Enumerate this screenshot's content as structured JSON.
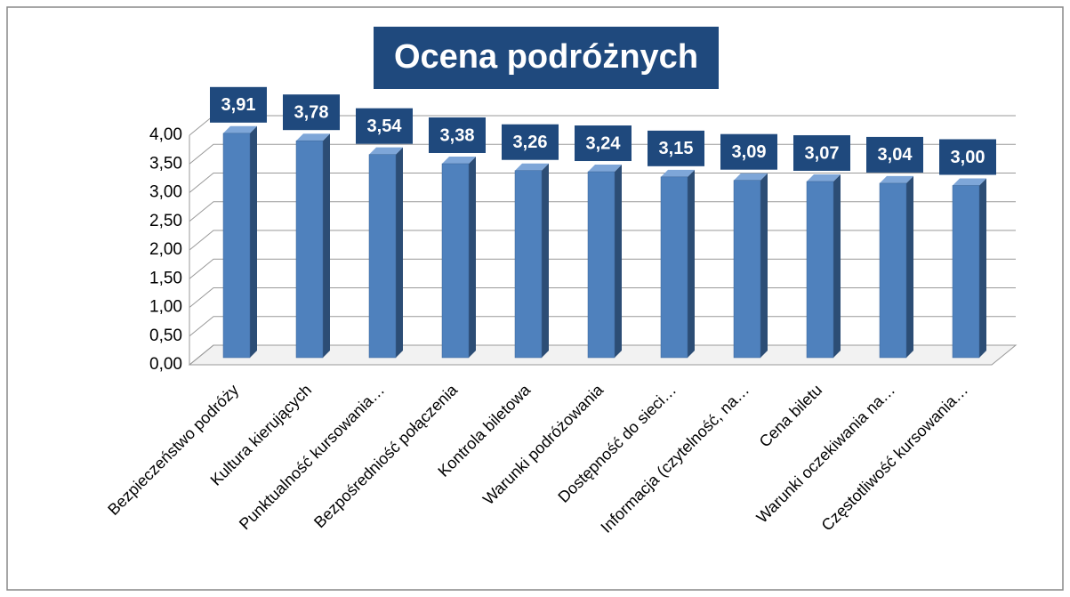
{
  "chart_data": {
    "type": "bar3d",
    "title": "Ocena podróżnych",
    "categories": [
      "Bezpieczeństwo podróży",
      "Kultura kierujących",
      "Punktualność kursowania…",
      "Bezpośredniość połączenia",
      "Kontrola biletowa",
      "Warunki podróżowania",
      "Dostępność do sieci…",
      "Informacja (czytelność, na…",
      "Cena biletu",
      "Warunki oczekiwania na…",
      "Częstotliwość kursowania…"
    ],
    "values": [
      3.91,
      3.78,
      3.54,
      3.38,
      3.26,
      3.24,
      3.15,
      3.09,
      3.07,
      3.04,
      3.0
    ],
    "value_labels": [
      "3,91",
      "3,78",
      "3,54",
      "3,38",
      "3,26",
      "3,24",
      "3,15",
      "3,09",
      "3,07",
      "3,04",
      "3,00"
    ],
    "color": "#4f81bd",
    "ylim": [
      0,
      4
    ],
    "yticks": [
      {
        "value": 0,
        "label": "0,00"
      },
      {
        "value": 0.5,
        "label": "0,50"
      },
      {
        "value": 1,
        "label": "1,00"
      },
      {
        "value": 1.5,
        "label": "1,50"
      },
      {
        "value": 2,
        "label": "2,00"
      },
      {
        "value": 2.5,
        "label": "2,50"
      },
      {
        "value": 3,
        "label": "3,00"
      },
      {
        "value": 3.5,
        "label": "3,50"
      },
      {
        "value": 4,
        "label": "4,00"
      }
    ],
    "grid": true
  }
}
